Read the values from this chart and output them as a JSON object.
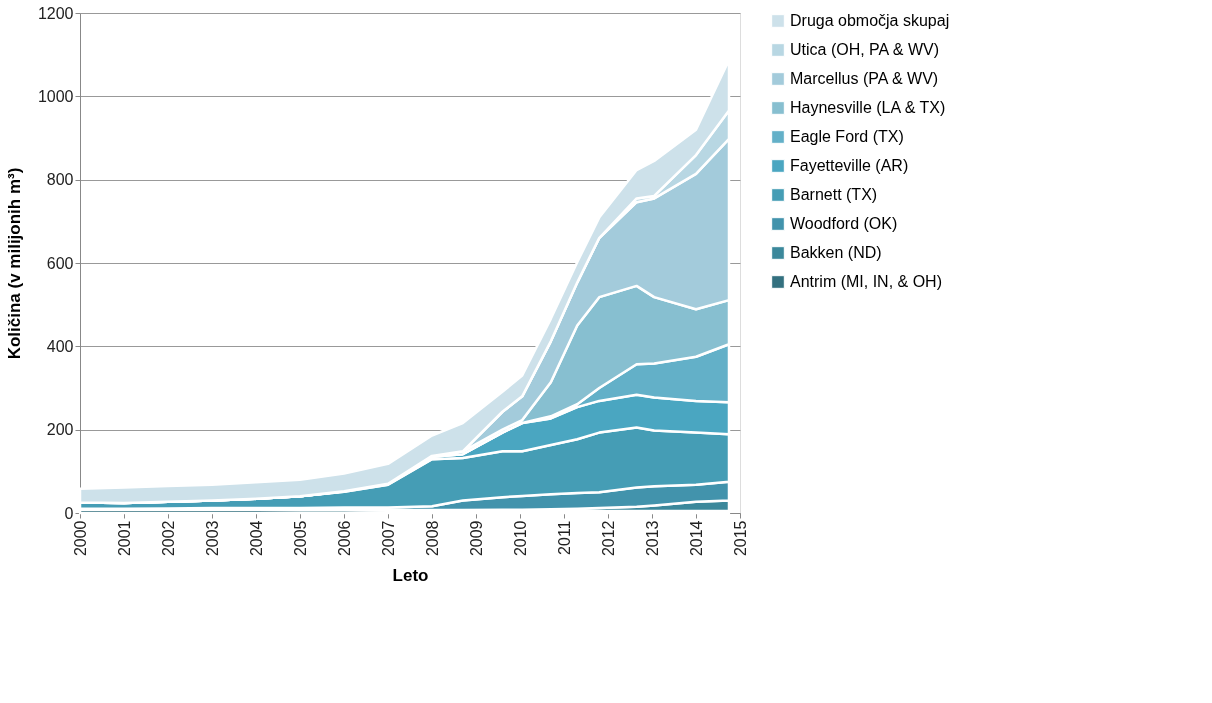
{
  "chart_data": {
    "type": "area",
    "stacked": true,
    "xlabel": "Leto",
    "ylabel": "Količina (v milijonih m³)",
    "x": [
      2000,
      2001,
      2002,
      2003,
      2004,
      2005,
      2006,
      2007,
      2008,
      2008.7,
      2009.6,
      2010.05,
      2010.7,
      2011.3,
      2011.8,
      2012.65,
      2013.05,
      2014.0,
      2014.75
    ],
    "xlim": [
      2000,
      2015
    ],
    "xticks": [
      2000,
      2001,
      2002,
      2003,
      2004,
      2005,
      2006,
      2007,
      2008,
      2009,
      2010,
      2011,
      2012,
      2013,
      2014,
      2015
    ],
    "ylim": [
      0,
      1200
    ],
    "yticks": [
      0,
      200,
      400,
      600,
      800,
      1000,
      1200
    ],
    "grid": "y",
    "legend": "right",
    "series": [
      {
        "name": "Antrim (MI, IN, & OH)",
        "color": "#33707f",
        "values": [
          8,
          8,
          8,
          8,
          8,
          7,
          7,
          6,
          6,
          6,
          5,
          5,
          5,
          5,
          5,
          5,
          5,
          5,
          5
        ]
      },
      {
        "name": "Bakken (ND)",
        "color": "#3b889b",
        "values": [
          1,
          1,
          1,
          1,
          1,
          1,
          1,
          1,
          1,
          1,
          3,
          3,
          4,
          5,
          7,
          10,
          13,
          22,
          25
        ]
      },
      {
        "name": "Woodford (OK)",
        "color": "#4293ac",
        "values": [
          1,
          1,
          2,
          3,
          3,
          4,
          5,
          6,
          9,
          23,
          30,
          33,
          36,
          38,
          38,
          46,
          46,
          41,
          45
        ]
      },
      {
        "name": "Barnett (TX)",
        "color": "#459db5",
        "values": [
          15,
          14,
          16,
          18,
          22,
          28,
          38,
          55,
          113,
          102,
          110,
          107,
          118,
          129,
          143,
          144,
          134,
          125,
          114
        ]
      },
      {
        "name": "Fayetteville (AR)",
        "color": "#4aa6c1",
        "values": [
          0,
          0,
          0,
          0,
          0,
          0,
          1,
          2,
          6,
          9,
          45,
          68,
          64,
          77,
          76,
          79,
          79,
          76,
          77
        ]
      },
      {
        "name": "Eagle Ford (TX)",
        "color": "#63b0c8",
        "values": [
          0,
          0,
          0,
          0,
          0,
          0,
          0,
          0,
          0,
          0,
          0,
          0,
          5,
          7,
          31,
          73,
          82,
          106,
          139
        ]
      },
      {
        "name": "Haynesville (LA & TX)",
        "color": "#87bfd0",
        "values": [
          0,
          0,
          0,
          0,
          0,
          0,
          0,
          0,
          2,
          7,
          7,
          7,
          82,
          189,
          218,
          188,
          159,
          114,
          106
        ]
      },
      {
        "name": "Marcellus (PA & WV)",
        "color": "#a3cbdb",
        "values": [
          0,
          0,
          0,
          0,
          0,
          0,
          0,
          0,
          0,
          0,
          43,
          57,
          98,
          103,
          142,
          201,
          237,
          325,
          387
        ]
      },
      {
        "name": "Utica (OH, PA & WV)",
        "color": "#b8d7e3",
        "values": [
          0,
          0,
          0,
          0,
          0,
          0,
          0,
          0,
          0,
          0,
          0,
          0,
          0,
          0,
          0,
          9,
          6,
          45,
          68
        ]
      },
      {
        "name": "Druga območja skupaj",
        "color": "#cde1ea",
        "values": [
          33,
          37,
          38,
          38,
          40,
          40,
          43,
          48,
          49,
          68,
          48,
          50,
          54,
          49,
          49,
          68,
          84,
          61,
          121
        ]
      }
    ]
  }
}
